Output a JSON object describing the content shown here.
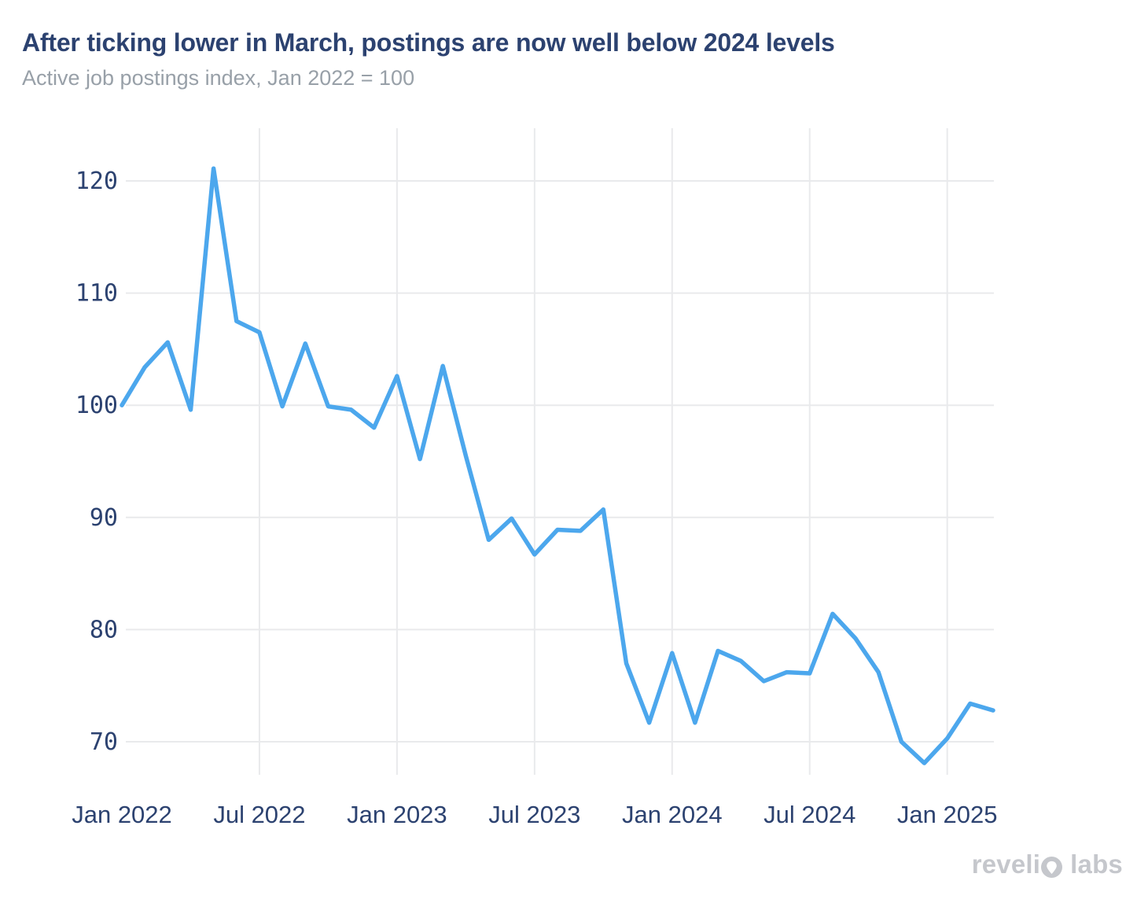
{
  "header": {
    "title": "After ticking lower in March, postings are now well below 2024 levels",
    "subtitle": "Active job postings index, Jan 2022 = 100"
  },
  "footer": {
    "logo_part1": "reveli",
    "logo_o_icon": "revelio-o-mark",
    "logo_part2": "labs"
  },
  "colors": {
    "line": "#4ca7ed",
    "grid": "#e9eaec",
    "axis_text": "#2c4270",
    "title_text": "#2c4270",
    "subtitle_text": "#98a0a8",
    "logo_text": "#c5c7cc",
    "background": "#ffffff"
  },
  "chart_data": {
    "type": "line",
    "title": "After ticking lower in March, postings are now well below 2024 levels",
    "subtitle": "Active job postings index, Jan 2022 = 100",
    "xlabel": "",
    "ylabel": "Active job postings index (Jan 2022 = 100)",
    "grid": true,
    "legend_position": "none",
    "ylim": [
      67,
      125
    ],
    "yticks": [
      70,
      80,
      90,
      100,
      110,
      120
    ],
    "x": [
      "Jan 2022",
      "Feb 2022",
      "Mar 2022",
      "Apr 2022",
      "May 2022",
      "Jun 2022",
      "Jul 2022",
      "Aug 2022",
      "Sep 2022",
      "Oct 2022",
      "Nov 2022",
      "Dec 2022",
      "Jan 2023",
      "Feb 2023",
      "Mar 2023",
      "Apr 2023",
      "May 2023",
      "Jun 2023",
      "Jul 2023",
      "Aug 2023",
      "Sep 2023",
      "Oct 2023",
      "Nov 2023",
      "Dec 2023",
      "Jan 2024",
      "Feb 2024",
      "Mar 2024",
      "Apr 2024",
      "May 2024",
      "Jun 2024",
      "Jul 2024",
      "Aug 2024",
      "Sep 2024",
      "Oct 2024",
      "Nov 2024",
      "Dec 2024",
      "Jan 2025",
      "Feb 2025",
      "Mar 2025"
    ],
    "series": [
      {
        "name": "Active job postings index",
        "values": [
          100.0,
          103.4,
          105.6,
          99.6,
          121.1,
          107.5,
          106.5,
          99.9,
          105.5,
          99.9,
          99.6,
          98.0,
          102.6,
          95.2,
          103.5,
          95.5,
          88.0,
          89.9,
          86.7,
          88.9,
          88.8,
          90.7,
          77.0,
          71.7,
          77.9,
          71.7,
          78.1,
          77.2,
          75.4,
          76.2,
          76.1,
          81.4,
          79.2,
          76.2,
          70.0,
          68.1,
          70.3,
          73.4,
          72.8
        ]
      }
    ],
    "x_ticks": [
      {
        "index": 0,
        "label": "Jan 2022",
        "gridline": false
      },
      {
        "index": 6,
        "label": "Jul 2022",
        "gridline": true
      },
      {
        "index": 12,
        "label": "Jan 2023",
        "gridline": true
      },
      {
        "index": 18,
        "label": "Jul 2023",
        "gridline": true
      },
      {
        "index": 24,
        "label": "Jan 2024",
        "gridline": true
      },
      {
        "index": 30,
        "label": "Jul 2024",
        "gridline": true
      },
      {
        "index": 36,
        "label": "Jan 2025",
        "gridline": true
      }
    ]
  }
}
